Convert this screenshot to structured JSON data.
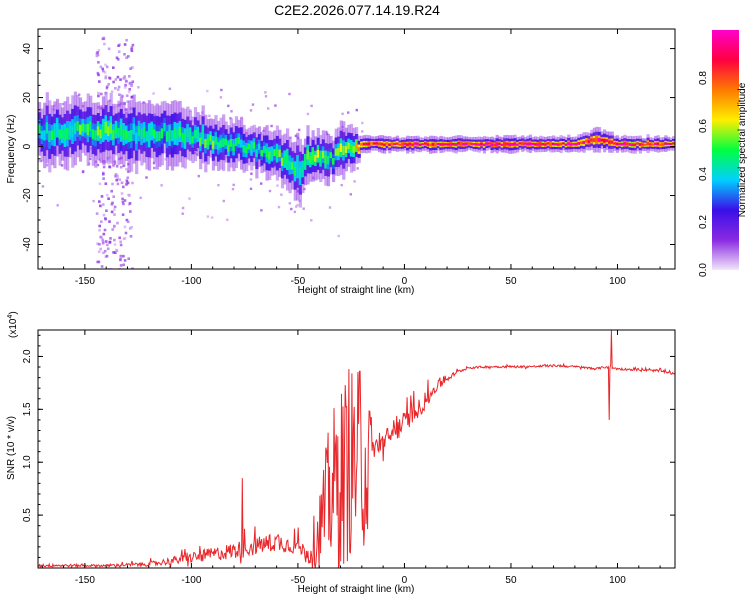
{
  "figure": {
    "title": "C2E2.2026.077.14.19.R24"
  },
  "chart_data": [
    {
      "type": "heatmap",
      "name": "spectrogram",
      "xlabel": "Height of straight line (km)",
      "ylabel": "Frequency (Hz)",
      "xlim": [
        -172,
        127
      ],
      "ylim": [
        -50,
        48
      ],
      "xticks": [
        -150,
        -100,
        -50,
        0,
        50,
        100
      ],
      "yticks": [
        -40,
        -20,
        0,
        20,
        40
      ],
      "colorbar": {
        "label": "Normalized spectral amplitude",
        "range": [
          0,
          1
        ],
        "ticks": [
          0.0,
          0.2,
          0.4,
          0.6,
          0.8
        ],
        "colors": [
          "#f3e6fb",
          "#8a2be2",
          "#3a0fe8",
          "#00d0ff",
          "#00ff40",
          "#ffee00",
          "#ff7a00",
          "#ff0040",
          "#ff00cc"
        ]
      },
      "ridge": {
        "x": [
          -172,
          -160,
          -150,
          -140,
          -130,
          -120,
          -110,
          -100,
          -90,
          -80,
          -70,
          -60,
          -55,
          -50,
          -45,
          -40,
          -35,
          -30,
          -25,
          -20,
          -10,
          0,
          10,
          20,
          50,
          80,
          90,
          100,
          127
        ],
        "freq": [
          6,
          6,
          7,
          6,
          5,
          6,
          6,
          4,
          2,
          1,
          -1,
          -4,
          -6,
          -10,
          -4,
          -5,
          -5,
          -2,
          0,
          1,
          1,
          1,
          1,
          1,
          1,
          1,
          3,
          1,
          1
        ],
        "amp": [
          0.45,
          0.45,
          0.5,
          0.5,
          0.45,
          0.45,
          0.45,
          0.5,
          0.5,
          0.45,
          0.45,
          0.5,
          0.5,
          0.45,
          0.6,
          0.55,
          0.45,
          0.55,
          0.55,
          0.9,
          0.85,
          0.9,
          0.85,
          0.9,
          0.95,
          0.9,
          0.9,
          0.9,
          0.85
        ],
        "halfwidth_hz": [
          8,
          8,
          8,
          8,
          8,
          8,
          8,
          7,
          6,
          6,
          6,
          6,
          7,
          8,
          6,
          6,
          6,
          7,
          5,
          2,
          2,
          2,
          2,
          2,
          2,
          2,
          3,
          2,
          2
        ]
      },
      "scatter_band": {
        "x": [
          -145,
          -128
        ],
        "ylim": [
          -50,
          45
        ]
      },
      "scatter_wide": {
        "x": [
          -172,
          -20
        ],
        "ylim": [
          -48,
          25
        ]
      }
    },
    {
      "type": "line",
      "name": "snr",
      "xlabel": "Height of straight line (km)",
      "ylabel": "SNR (10 * v/v)",
      "multiplier": "(x10",
      "multiplier_exp": "4",
      "xlim": [
        -172,
        127
      ],
      "ylim": [
        0,
        2.25
      ],
      "xticks": [
        -150,
        -100,
        -50,
        0,
        50,
        100
      ],
      "yticks": [
        0.5,
        1.0,
        1.5,
        2.0
      ],
      "color": "#e8272b",
      "series": {
        "x": [
          -172,
          -140,
          -120,
          -100,
          -80,
          -60,
          -50,
          -45,
          -40,
          -35,
          -30,
          -25,
          -20,
          -17,
          -15,
          -10,
          -5,
          0,
          5,
          10,
          15,
          20,
          25,
          30,
          40,
          50,
          60,
          70,
          80,
          90,
          95,
          100,
          110,
          120,
          127
        ],
        "base": [
          0.02,
          0.02,
          0.03,
          0.08,
          0.14,
          0.22,
          0.18,
          0.12,
          0.35,
          0.7,
          0.85,
          1.0,
          1.0,
          1.0,
          1.1,
          1.15,
          1.25,
          1.35,
          1.45,
          1.55,
          1.7,
          1.78,
          1.85,
          1.89,
          1.9,
          1.9,
          1.9,
          1.91,
          1.9,
          1.88,
          1.9,
          1.88,
          1.87,
          1.86,
          1.83
        ],
        "noise": [
          0.03,
          0.02,
          0.04,
          0.1,
          0.16,
          0.18,
          0.15,
          0.12,
          0.4,
          0.7,
          0.9,
          0.9,
          0.85,
          0.85,
          0.2,
          0.22,
          0.22,
          0.2,
          0.18,
          0.15,
          0.1,
          0.06,
          0.03,
          0.02,
          0.02,
          0.02,
          0.02,
          0.02,
          0.02,
          0.02,
          0.02,
          0.02,
          0.02,
          0.02,
          0.02
        ]
      },
      "spikes": [
        {
          "x": -76,
          "y": 0.85
        },
        {
          "x": -26,
          "y": 1.88
        },
        {
          "x": -21,
          "y": 1.86
        },
        {
          "x": 97,
          "y": 2.25
        },
        {
          "x": 96,
          "y": 1.4
        }
      ]
    }
  ]
}
